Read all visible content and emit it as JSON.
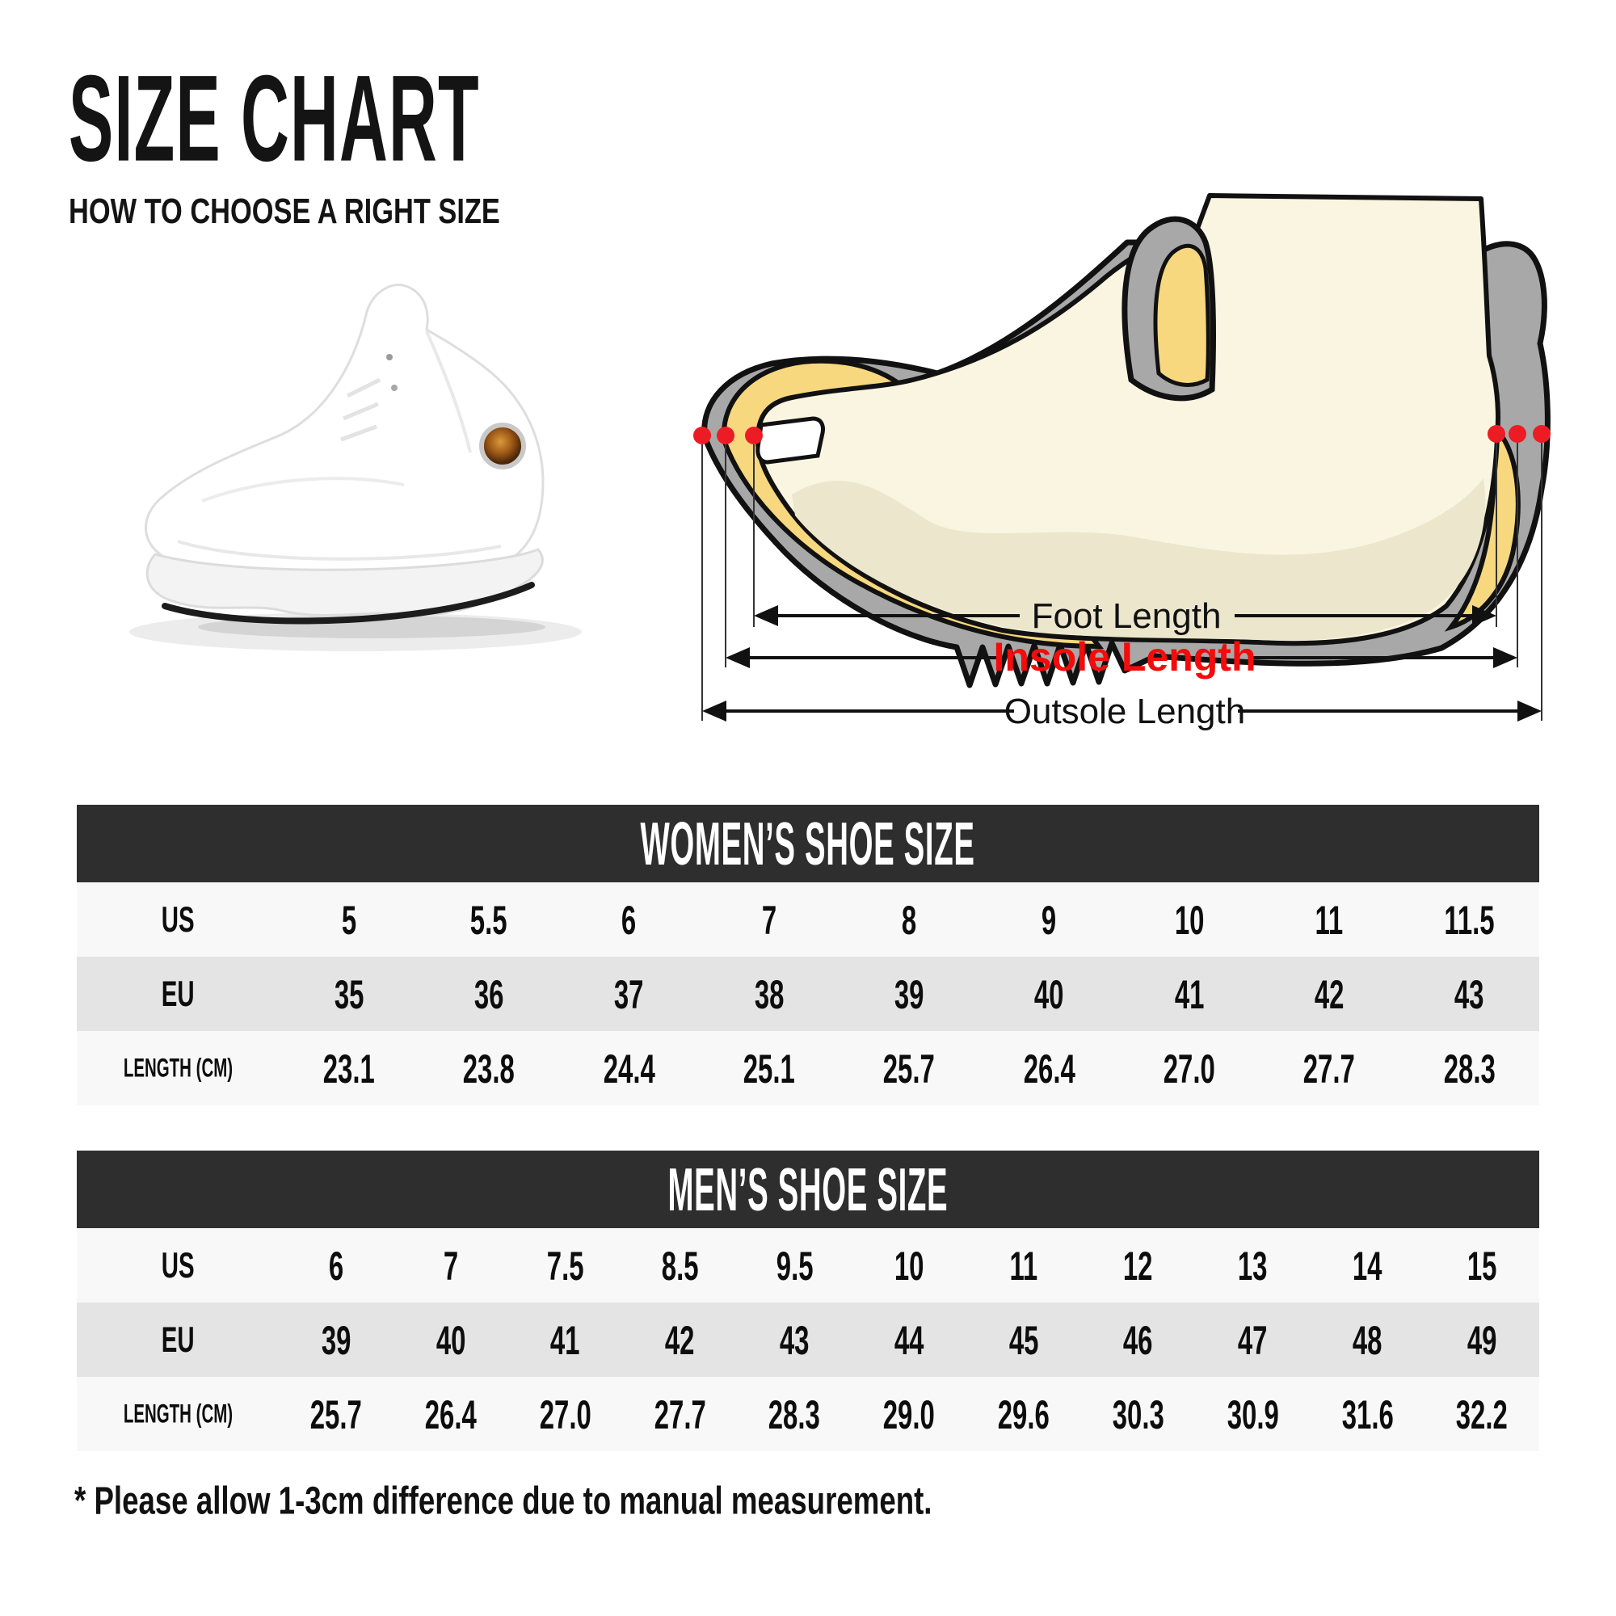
{
  "title": "SIZE CHART",
  "subtitle": "HOW TO CHOOSE A RIGHT SIZE",
  "diagram": {
    "foot_length_label": "Foot Length",
    "insole_length_label": "Insole Length",
    "outsole_length_label": "Outsole Length",
    "colors": {
      "shoe_gray": "#a8a8a8",
      "insole_yellow": "#f7d87f",
      "foot_cream": "#f9f5e0",
      "foot_shade": "#ece6cc",
      "marker_dot_red": "#ed1c24",
      "insole_label_red": "#f40b0b"
    }
  },
  "tables": {
    "women": {
      "header": "WOMEN’S SHOE SIZE",
      "rows": [
        {
          "label": "US",
          "values": [
            "5",
            "5.5",
            "6",
            "7",
            "8",
            "9",
            "10",
            "11",
            "11.5"
          ]
        },
        {
          "label": "EU",
          "values": [
            "35",
            "36",
            "37",
            "38",
            "39",
            "40",
            "41",
            "42",
            "43"
          ]
        },
        {
          "label": "LENGTH (CM)",
          "values": [
            "23.1",
            "23.8",
            "24.4",
            "25.1",
            "25.7",
            "26.4",
            "27.0",
            "27.7",
            "28.3"
          ]
        }
      ]
    },
    "men": {
      "header": "MEN’S SHOE SIZE",
      "rows": [
        {
          "label": "US",
          "values": [
            "6",
            "7",
            "7.5",
            "8.5",
            "9.5",
            "10",
            "11",
            "12",
            "13",
            "14",
            "15"
          ]
        },
        {
          "label": "EU",
          "values": [
            "39",
            "40",
            "41",
            "42",
            "43",
            "44",
            "45",
            "46",
            "47",
            "48",
            "49"
          ]
        },
        {
          "label": "LENGTH (CM)",
          "values": [
            "25.7",
            "26.4",
            "27.0",
            "27.7",
            "28.3",
            "29.0",
            "29.6",
            "30.3",
            "30.9",
            "31.6",
            "32.2"
          ]
        }
      ]
    },
    "colors": {
      "header_bg": "#2e2e2e",
      "row_light": "#f8f8f8",
      "row_gray": "#e4e4e4"
    }
  },
  "footnote": "* Please allow 1-3cm difference due to manual measurement."
}
